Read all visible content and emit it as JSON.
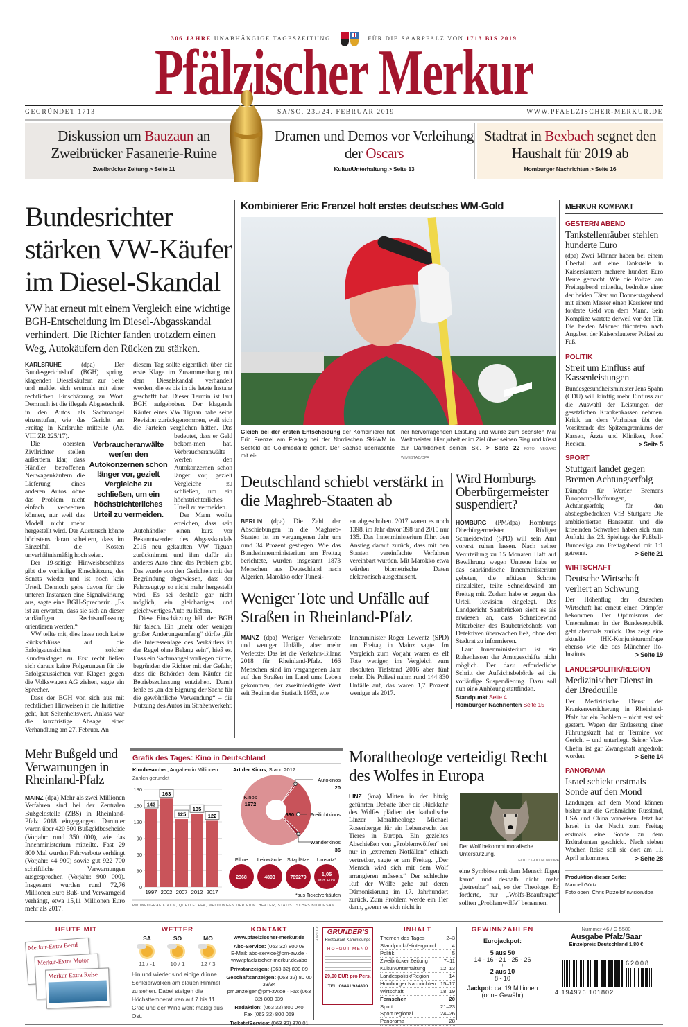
{
  "tagline": {
    "years": "306 JAHRE",
    "independent": "UNABHÄNGIGE TAGESZEITUNG",
    "for": "FÜR DIE SAARPFALZ VON",
    "span": "1713 BIS 2019"
  },
  "masthead": {
    "title": "Pfälzischer Merkur",
    "founded": "GEGRÜNDET 1713",
    "date": "SA/SO, 23./24. FEBRUAR 2019",
    "url": "WWW.PFAELZISCHER-MERKUR.DE"
  },
  "teasers": [
    {
      "pre": "Diskussion um ",
      "hl": "Bauzaun",
      "post": " an Zweibrücker Fasanerie-Ruine",
      "ref": "Zweibrücker Zeitung > Seite 11"
    },
    {
      "pre": "Dramen und Demos vor Verleihung der ",
      "hl": "Oscars",
      "post": "",
      "ref": "Kultur/Unterhaltung > Seite 13"
    },
    {
      "pre": "Stadtrat in ",
      "hl": "Bexbach",
      "post": " segnet den Haushalt für 2019 ab",
      "ref": "Homburger Nachrichten > Seite 16"
    }
  ],
  "lead_story": {
    "headline": "Bundesrichter stärken VW-Käufer im Diesel-Skandal",
    "lead": "VW hat erneut mit einem Vergleich eine wichtige BGH-Entscheidung im Diesel-Abgasskandal verhindert. Die Richter fanden trotzdem einen Weg, Autokäufern den Rücken zu stärken.",
    "dateline": "KARLSRUHE",
    "p1": " (dpa) Der Bundesgerichtshof (BGH) springt klagenden Dieselkäufern zur Seite und meldet sich erstmals mit einer rechtlichen Einschätzung zu Wort. Demnach ist die illegale Abgastechnik in den Autos als Sachmangel einzustufen, wie das Gericht am Freitag in Karlsruhe mitteilte (Az. VIII ZR 225/17).",
    "p2": "Die obersten Zivilrichter stellen außerdem klar, dass Händler betroffenen Neuwagenkäufern die Lieferung eines anderen Autos ohne das Problem nicht einfach verwehren können, nur weil das Modell nicht mehr hergestellt wird. Der Austausch könne höchstens daran scheitern, dass im Einzelfall die Kosten unverhältnismäßig hoch seien.",
    "p3": "Der 19-seitige Hinweisbeschluss gibt die vorläufige Einschätzung des Senats wieder und ist noch kein Urteil. Dennoch gehe davon für die unteren Instanzen eine Signalwirkung aus, sagte eine BGH-Sprecherin. „Es ist zu erwarten, dass sie sich an dieser vorläufigen Rechtsauffassung orientieren werden.“",
    "p4": "VW teilte mit, dies lasse noch keine Rückschlüsse auf die Erfolgsaussichten solcher Kundenklagen zu. Erst recht ließen sich daraus keine Folgerungen für die Erfolgsaussichten von Klagen gegen die Volkswagen AG ziehen, sagte ein Sprecher.",
    "p5": "Dass der BGH von sich aus mit rechtlichen Hinweisen in die Initiative geht, hat Seltenheitswert. Anlass war die kurzfristige Absage einer Verhandlung am 27. Februar. An",
    "c2p1a": "diesem Tag sollte eigentlich über die erste Klage im Zusammenhang mit dem Dieselskandal verhandelt werden, die es bis in die letzte Instanz geschafft hat. Dieser Termin ist laut BGH aufgehoben. Der klagende Käufer eines VW Tiguan habe seine Revision zurückgenommen, weil sich die Parteien verglichen hätten. Das bedeutet, dass er Geld bekom-",
    "c2p1b": "men hat. Verbraucheranwälte werfen den Autokonzernen schon länger vor, gezielt Vergleiche zu schließen, um ein höchstrichterliches Urteil zu vermeiden.",
    "c2p2": "Der Mann wollte erreichen, dass sein Autohändler einen kurz vor Bekanntwerden des Abgasskandals 2015 neu gekauften VW Tiguan zurücknimmt und ihm dafür ein anderes Auto ohne das Problem gibt. Das wurde von den Gerichten mit der Begründung abgewiesen, dass der Fahrzeugtyp so nicht mehr hergestellt wird. Es sei deshalb gar nicht möglich, ein gleichartiges und gleichwertiges Auto zu liefern.",
    "c2p3": "Diese Einschätzung hält der BGH für falsch. Ein „mehr oder weniger großer Änderungsumfang“ dürfte „für die Interessenlage des Verkäufers in der Regel ohne Belang sein“, hieß es. Dass ein Sachmangel vorliegen dürfte, begründen die Richter mit der Gefahr, dass die Behörden dem Käufer die Betriebszulassung entziehen. Damit fehle es „an der Eignung der Sache für die gewöhnliche Verwendung“ – die Nutzung des Autos im Straßenverkehr.",
    "pull_quote": "Verbraucheranwälte werfen den Autokonzernen schon länger vor, gezielt Vergleiche zu schließen, um ein höchstrichterliches Urteil zu vermeiden."
  },
  "photo_story": {
    "headline": "Kombinierer Eric Frenzel holt erstes deutsches WM-Gold",
    "caption_bold": "Gleich bei der ersten Entscheidung",
    "caption_a": " der Kombinierer hat Eric Frenzel am Freitag bei der Nordischen Ski-WM in Seefeld die Goldmedaille geholt. Der Sachse überraschte mit ei-",
    "caption_b": "ner hervorragenden Leistung und wurde zum sechsten Mal Weltmeister. Hier jubelt er im Ziel über seinen Sieg und küsst zur Dankbarkeit seinen Ski.",
    "ref": " > Seite 22",
    "credit": " FOTO: VEGARD WIVESTAD/DPA"
  },
  "maghreb": {
    "headline": "Deutschland schiebt verstärkt in die Maghreb-Staaten ab",
    "dateline": "BERLIN",
    "c1": " (dpa) Die Zahl der Abschiebungen in die Maghreb-Staaten ist im vergangenen Jahr um rund 34 Prozent gestiegen. Wie das Bundesinnenministerium am Freitag berichtete, wurden insgesamt 1873 Menschen aus Deutschland nach Algerien, Marokko oder Tunesi-",
    "c2": "en abgeschoben. 2017 waren es noch 1398, im Jahr davor 398 und 2015 nur 135. Das Innenministerium führt den Anstieg darauf zurück, dass mit den Staaten vereinfachte Verfahren vereinbart wurden. Mit Marokko etwa würden biometrische Daten elektronisch ausgetauscht."
  },
  "traffic": {
    "headline": "Weniger Tote und Unfälle auf Straßen in Rheinland-Pfalz",
    "dateline": "MAINZ",
    "c1": " (dpa) Weniger Verkehrstote und weniger Unfälle, aber mehr Verletzte: Das ist die Verkehrs-Bilanz 2018 für Rheinland-Pfalz. 166 Menschen sind im vergangenen Jahr auf den Straßen im Land ums Leben gekommen, der zweitniedrigste Wert seit Beginn der Statistik 1953, wie",
    "c2": "Innenminister Roger Lewentz (SPD) am Freitag in Mainz sagte. Im Vergleich zum Vorjahr waren es elf Tote weniger, im Vergleich zum absoluten Tiefstand 2016 aber fünf mehr. Die Polizei nahm rund 144 830 Unfälle auf, das waren 1,7 Prozent weniger als 2017."
  },
  "homburg": {
    "headline": "Wird Homburgs Oberbürgermeister suspendiert?",
    "dateline": "HOMBURG",
    "p1": " (PM/dpa) Homburgs Oberbürgermeister Rüdiger Schneidewind (SPD) will sein Amt vorerst ruhen lassen. Nach seiner Verurteilung zu 15 Monaten Haft auf Bewährung wegen Untreue habe er das saarländische Innenministerium gebeten, die nötigen Schritte einzuleiten, teilte Schneidewind am Freitag mit. Zudem habe er gegen das Urteil Revision eingelegt. Das Landgericht Saarbrücken sieht es als erwiesen an, dass Schneidewind Mitarbeiter des Baubetriebshofs von Detektiven überwachen ließ, ohne den Stadtrat zu informieren.",
    "p2": "Laut Innenministerium ist ein Ruhenlassen der Amtsgeschäfte nicht möglich. Der dazu erforderliche Schritt der Aufsichtsbehörde sei die vorläufige Suspendierung. Dazu soll nun eine Anhörung stattfinden.",
    "refs": [
      {
        "label": "Standpunkt",
        "page": "Seite 4"
      },
      {
        "label": "Homburger Nachrichten",
        "page": "Seite 15"
      }
    ]
  },
  "bussgeld": {
    "headline": "Mehr Bußgeld und Verwarnungen in Rheinland-Pfalz",
    "dateline": "MAINZ",
    "text": " (dpa) Mehr als zwei Millionen Verfahren sind bei der Zentralen Bußgeldstelle (ZBS) in Rheinland-Pfalz 2018 eingegangen. Darunter waren über 420 500 Bußgeldbescheide (Vorjahr: rund 350 000), wie das Innenministerium mitteilte. Fast 29 800 Mal wurden Fahrverbote verhängt (Vorjahr: 44 900) sowie gut 922 700 schriftliche Verwarnungen ausgesprochen (Vorjahr: 900 000). Insgesamt wurden rund 72,76 Millionen Euro Buß- und Verwarngeld verhängt, etwa 15,11 Millionen Euro mehr als 2017."
  },
  "wolf": {
    "headline": "Moraltheologe verteidigt Recht des Wolfes in Europa",
    "dateline": "LINZ",
    "c1": " (kna) Mitten in der hitzig geführten Debatte über die Rückkehr des Wolfes plädiert der katholische Linzer Moraltheologe Michael Rosenberger für ein Lebensrecht des Tieres in Europa. Ein gezieltes Abschießen von „Problemwölfen“ sei nur in „extremen Notfällen“ ethisch vertretbar, sagte er am Freitag. „Der Mensch wird sich mit dem Wolf arrangieren müssen.“ Der schlechte Ruf der Wölfe gehe auf deren Dämonisierung im 17. Jahrhundert zurück. Zum Problem werde ein Tier dann, „wenn es sich nicht in",
    "c2": "eine Symbiose mit dem Mensch fügen kann“ und deshalb nicht mehr „betreubar“ sei, so der Theologe. Er forderte, nur „Wolfs-Beauftragte“ sollten „Problemwölfe“ benennen.",
    "caption": "Der Wolf bekommt moralische Unterstützung.",
    "credit": "FOTO: GOLLNOW/DPA"
  },
  "chart_data": {
    "title": "Grafik des Tages: Kino in Deutschland",
    "source": "PM INFOGRAFIK/ACM, QUELLE: FFA, MELDUNGEN DER FILMTHEATER, STATISTISCHES BUNDESAMT",
    "bar": {
      "type": "bar",
      "title_bold": "Kinobesucher",
      "title_rest": ", Angaben in Millionen",
      "note": "Zahlen gerundet",
      "categories": [
        "1997",
        "2002",
        "2007",
        "2012",
        "2017"
      ],
      "values": [
        143,
        163,
        125,
        135,
        122
      ],
      "ylim": [
        0,
        180
      ],
      "yticks": [
        0,
        30,
        60,
        90,
        120,
        150,
        180
      ],
      "color": "#c9545a"
    },
    "pie": {
      "type": "pie",
      "title_bold": "Art der Kinos",
      "title_rest": ", Stand 2017",
      "slices": [
        {
          "label": "Autokinos",
          "value": 20
        },
        {
          "label": "Freilichtkinos",
          "value": 630
        },
        {
          "label": "Wanderkinos",
          "value": 36
        },
        {
          "label": "Kinos",
          "value": 1672
        }
      ]
    },
    "stats": [
      {
        "label": "Filme",
        "value": "2368"
      },
      {
        "label": "Leinwände",
        "value": "4803"
      },
      {
        "label": "Sitzplätze",
        "value": "789279"
      },
      {
        "label": "Umsatz*",
        "value": "1,05",
        "unit": "Mrd. Euro"
      }
    ],
    "footnote": "*aus Ticketverkäufen"
  },
  "kompakt": {
    "title": "MERKUR KOMPAKT",
    "items": [
      {
        "label": "GESTERN ABEND",
        "headline": "Tankstellenräuber stehlen hunderte Euro",
        "text": "(dpa) Zwei Männer haben bei einem Überfall auf eine Tankstelle in Kaiserslautern mehrere hundert Euro Beute gemacht. Wie die Polizei am Freitagabend mitteilte, bedrohte einer der beiden Täter am Donnerstagabend mit einem Messer einen Kassierer und forderte Geld von dem Mann. Sein Komplize wartete derweil vor der Tür. Die beiden Männer flüchteten nach Angaben der Kaiserslauterer Polizei zu Fuß.",
        "ref": ""
      },
      {
        "label": "POLITIK",
        "headline": "Streit um Einfluss auf Kassenleistungen",
        "text": "Bundesgesundheitsminister Jens Spahn (CDU) will künftig mehr Einfluss auf die Auswahl der Leistungen der gesetzlichen Krankenkassen nehmen. Kritik an dem Vorhaben übt der Vorsitzende des Spitzengremiums der Kassen, Ärzte und Kliniken, Josef Hecken.",
        "ref": "> Seite 5"
      },
      {
        "label": "SPORT",
        "headline": "Stuttgart landet gegen Bremen Achtungserfolg",
        "text": "Dämpfer für Werder Bremens Europacup-Hoffnungen, Achtungserfolg für den abstiegsbedrohten VfB Stuttgart: Die ambitionierten Hanseaten und die kriselnden Schwaben haben sich zum Auftakt des 23. Spieltags der Fußball-Bundesliga am Freitagabend mit 1:1 getrennt.",
        "ref": "> Seite 21"
      },
      {
        "label": "WIRTSCHAFT",
        "headline": "Deutsche Wirtschaft verliert an Schwung",
        "text": "Der Höhenflug der deutschen Wirtschaft hat erneut einen Dämpfer bekommen. Der Optimismus der Unternehmen in der Bundesrepublik geht abermals zurück. Das zeigt eine aktuelle IHK-Konjunkturumfrage ebenso wie die des Münchner Ifo-Instituts.",
        "ref": "> Seite 19"
      },
      {
        "label": "LANDESPOLITIK/REGION",
        "headline": "Medizinischer Dienst in der Bredouille",
        "text": "Der Medizinische Dienst der Krankenversicherung in Rheinland-Pfalz hat ein Problem – nicht erst seit gestern. Wegen der Entlassung einer Führungskraft hat er Termine vor Gericht – und unterliegt. Seiner Vize-Chefin ist gar Zwangshaft angedroht worden.",
        "ref": "> Seite 14"
      },
      {
        "label": "PANORAMA",
        "headline": "Israel schickt erstmals Sonde auf den Mond",
        "text": "Landungen auf dem Mond können bisher nur die Großmächte Russland, USA und China vorweisen. Jetzt hat Israel in der Nacht zum Freitag erstmals eine Sonde zu dem Erdtrabanten geschickt. Nach sieben Wochen Reise soll sie dort am 11. April ankommen.",
        "ref": "> Seite 28"
      }
    ],
    "production_label": "Produktion dieser Seite:",
    "production_name": "Manuel Görtz",
    "photo_credit": "Foto oben: Chris Pizzello/Invision/dpa"
  },
  "footer": {
    "heute_mit": {
      "title": "HEUTE MIT",
      "supplements": [
        "Merkur-Extra Beruf",
        "Merkur-Extra Motor",
        "Merkur-Extra Reise"
      ]
    },
    "wetter": {
      "title": "WETTER",
      "days": [
        {
          "day": "SA",
          "temp": "11 / -1",
          "icon": "sun-cloud"
        },
        {
          "day": "SO",
          "temp": "10 / 1",
          "icon": "sun-cloud"
        },
        {
          "day": "MO",
          "temp": "12 / 3",
          "icon": "sun-cloud"
        }
      ],
      "text": "Hin und wieder sind einige dünne Schleierwolken am blauen Himmel zu sehen. Dabei steigen die Höchsttemperaturen auf 7 bis 11 Grad und der Wind weht mäßig aus Ost."
    },
    "kontakt": {
      "title": "KONTAKT",
      "web": "www.pfaelzischer-merkur.de",
      "lines": [
        {
          "label": "Abo-Service:",
          "value": " (063 32) 800 08",
          "extra": "E-Mail: abo-service@pm-zw.de · www.pfaelzischer-merkur.de/abo"
        },
        {
          "label": "Privatanzeigen:",
          "value": " (063 32) 800 09",
          "extra": ""
        },
        {
          "label": "Geschäftsanzeigen:",
          "value": " (063 32) 80 00 33/34",
          "extra": "pm.anzeigen@pm-zw.de · Fax (063 32) 800 039"
        },
        {
          "label": "Redaktion:",
          "value": " (063 32) 800 040",
          "extra": "Fax (063 32) 800 059"
        },
        {
          "label": "Tickets/Service:",
          "value": " (063 32) 870 01",
          "extra": ""
        }
      ]
    },
    "ad": {
      "tag": "ANZEIGE",
      "brand": "GRUNDER'S",
      "sub": "Restaurant Kaminlounge",
      "menu": "HOFGUT-MENÜ",
      "price": "29,90 EUR pro Pers.",
      "tel": "TEL. 06841/934800"
    },
    "inhalt": {
      "title": "INHALT",
      "items": [
        {
          "t": "Themen des Tages",
          "p": "2–3"
        },
        {
          "t": "Standpunkt/Hintergrund",
          "p": "4"
        },
        {
          "t": "Politik",
          "p": "5"
        },
        {
          "t": "Zweibrücker Zeitung",
          "p": "7–11"
        },
        {
          "t": "Kultur/Unterhaltung",
          "p": "12–13"
        },
        {
          "t": "Landespolitik/Region",
          "p": "14"
        },
        {
          "t": "Homburger Nachrichten",
          "p": "15–17"
        },
        {
          "t": "Wirtschaft",
          "p": "18–19"
        },
        {
          "t": "Fernsehen",
          "p": "20",
          "bold": true
        },
        {
          "t": "Sport",
          "p": "21–23"
        },
        {
          "t": "Sport regional",
          "p": "24–26"
        },
        {
          "t": "Panorama",
          "p": "28"
        }
      ]
    },
    "lotto": {
      "title": "GEWINNZAHLEN",
      "game": "Eurojackpot:",
      "a_label": "5 aus 50",
      "a_nums": "14 - 16 - 21 - 25 - 26",
      "plus": "+",
      "b_label": "2 aus 10",
      "b_nums": "8 - 10",
      "jackpot_label": "Jackpot:",
      "jackpot": " ca. 19 Millionen",
      "disclaimer": "(ohne Gewähr)"
    },
    "edition": {
      "number": "Nummer 46 / G 5580",
      "name": "Ausgabe Pfalz/Saar",
      "price": "Einzelpreis Deutschland 1,80 €",
      "barcode": "4 194976 101802",
      "addon": "62008"
    }
  }
}
